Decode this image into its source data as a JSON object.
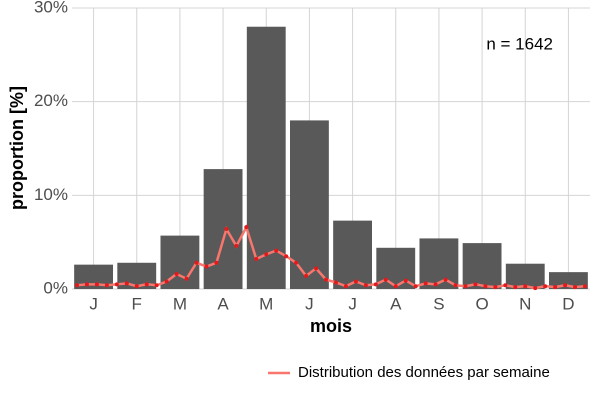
{
  "chart_data": {
    "type": "bar",
    "categories": [
      "J",
      "F",
      "M",
      "A",
      "M",
      "J",
      "J",
      "A",
      "S",
      "O",
      "N",
      "D"
    ],
    "values": [
      2.6,
      2.8,
      5.7,
      12.8,
      28.0,
      18.0,
      7.3,
      4.4,
      5.4,
      4.9,
      2.7,
      1.8
    ],
    "color": "#595959",
    "ylim": [
      0,
      30
    ],
    "yticks": [
      {
        "value": 0,
        "label": "0%"
      },
      {
        "value": 10,
        "label": "10%"
      },
      {
        "value": 20,
        "label": "20%"
      },
      {
        "value": 30,
        "label": "30%"
      }
    ],
    "grid": true,
    "xlabel": "mois",
    "ylabel": "proportion [%]",
    "annotation": "n = 1642",
    "legend": "bottom-right",
    "series": [
      {
        "name": "Distribution des données par semaine",
        "type": "line",
        "color": "#f8766d",
        "point_color": "#e31a1c",
        "x": [
          1,
          2,
          3,
          4,
          5,
          6,
          7,
          8,
          9,
          10,
          11,
          12,
          13,
          14,
          15,
          16,
          17,
          18,
          19,
          20,
          21,
          22,
          23,
          24,
          25,
          26,
          27,
          28,
          29,
          30,
          31,
          32,
          33,
          34,
          35,
          36,
          37,
          38,
          39,
          40,
          41,
          42,
          43,
          44,
          45,
          46,
          47,
          48,
          49,
          50,
          51,
          52
        ],
        "values": [
          0.4,
          0.5,
          0.5,
          0.4,
          0.5,
          0.6,
          0.3,
          0.5,
          0.4,
          0.8,
          1.6,
          1.1,
          2.8,
          2.4,
          2.8,
          6.4,
          4.6,
          6.6,
          3.2,
          3.7,
          4.1,
          3.5,
          2.8,
          1.4,
          2.2,
          1.0,
          0.7,
          0.3,
          0.8,
          0.4,
          0.5,
          1.0,
          0.3,
          0.9,
          0.3,
          0.6,
          0.5,
          1.0,
          0.4,
          0.3,
          0.5,
          0.3,
          0.2,
          0.4,
          0.2,
          0.3,
          0.1,
          0.3,
          0.2,
          0.4,
          0.2,
          0.3
        ]
      }
    ]
  }
}
